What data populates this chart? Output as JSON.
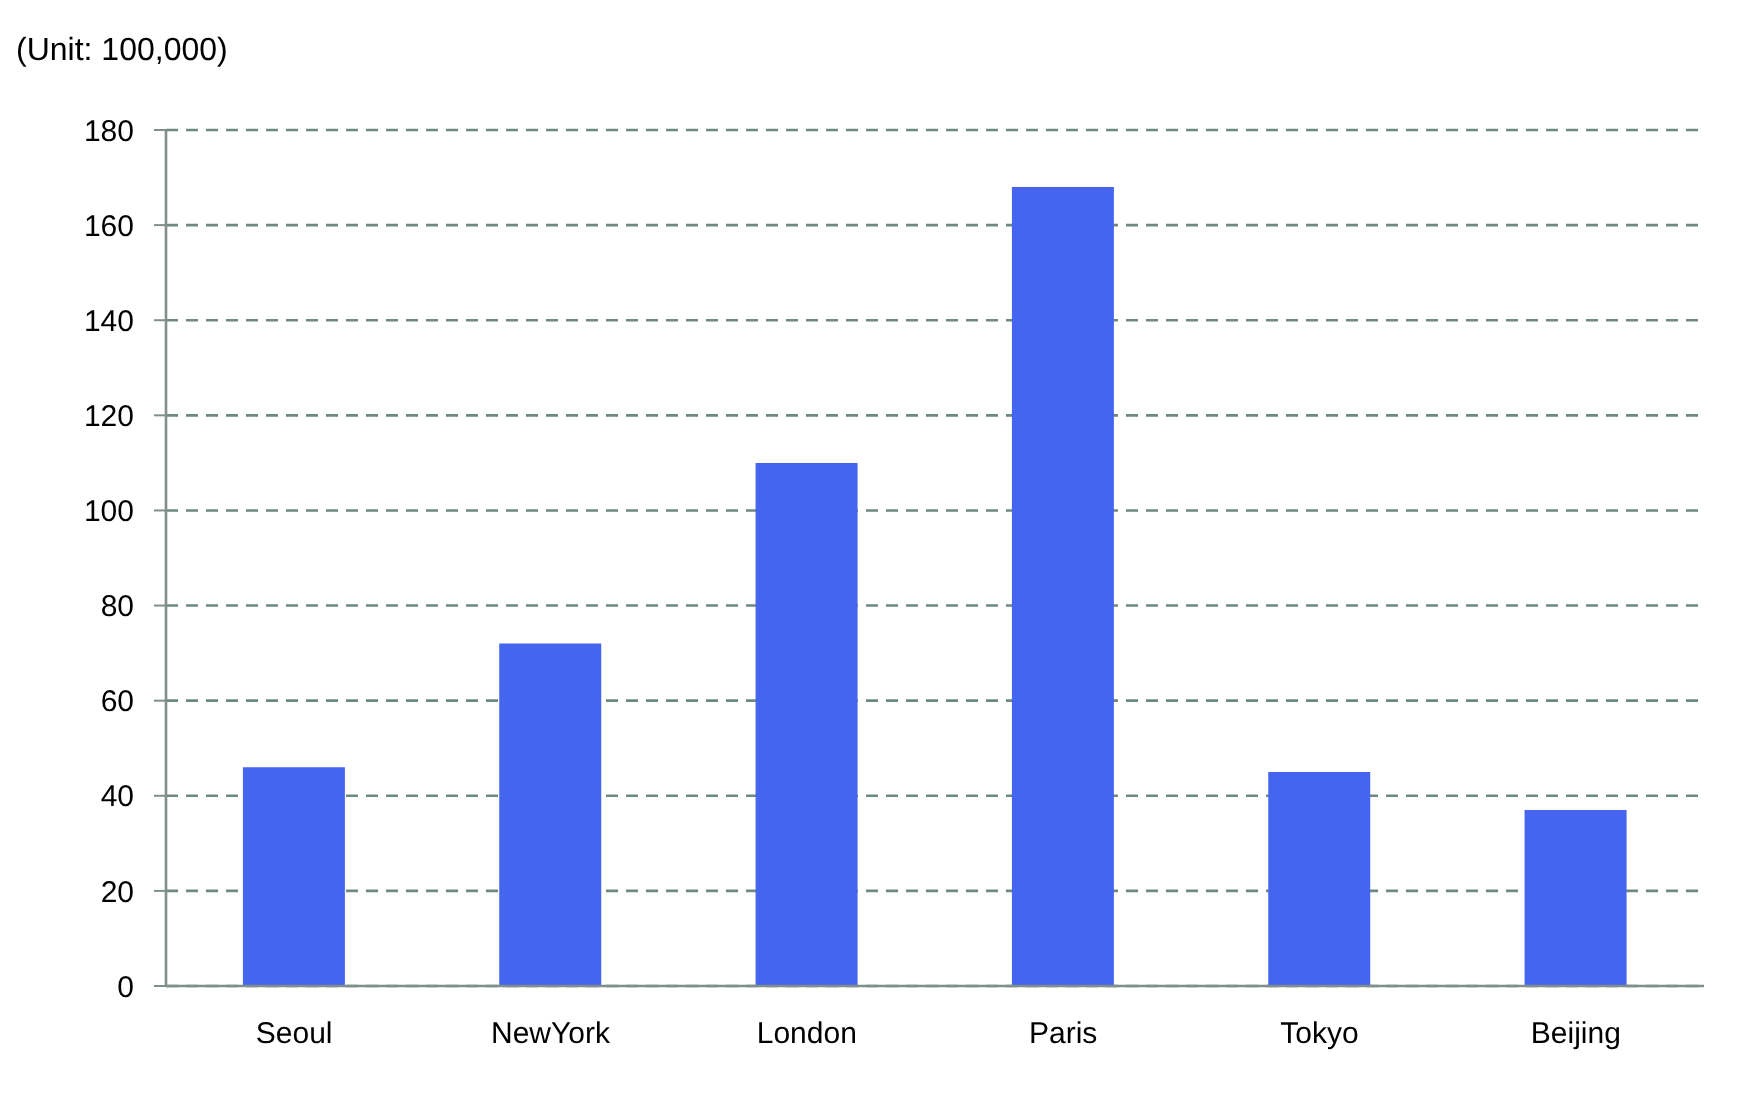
{
  "chart_data": {
    "type": "bar",
    "ylabel": "(Unit: 100,000)",
    "categories": [
      "Seoul",
      "NewYork",
      "London",
      "Paris",
      "Tokyo",
      "Beijing"
    ],
    "values": [
      46,
      72,
      110,
      168,
      45,
      37
    ],
    "color": "#4565ee",
    "ylim": [
      0,
      180
    ],
    "yticks": [
      0,
      20,
      40,
      60,
      80,
      100,
      120,
      140,
      160,
      180
    ],
    "grid": "y"
  }
}
